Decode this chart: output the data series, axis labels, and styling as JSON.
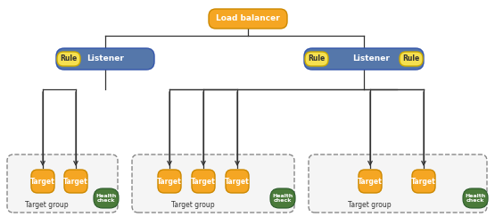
{
  "bg_color": "#ffffff",
  "orange_color": "#F5A623",
  "orange_edge": "#cc8800",
  "blue_color": "#5577AA",
  "blue_edge": "#3355AA",
  "yellow_color": "#F5E050",
  "yellow_edge": "#ccaa00",
  "green_color": "#4A7A3A",
  "green_edge": "#2a5a2a",
  "line_color": "#333333",
  "text_white": "#ffffff",
  "text_dark": "#333333",
  "load_balancer_label": "Load balancer",
  "listener_label": "Listener",
  "rule_label": "Rule",
  "target_label": "Target",
  "target_group_label": "Target group",
  "health_check_label": "Health\ncheck",
  "figsize": [
    5.55,
    2.43
  ],
  "dpi": 100
}
